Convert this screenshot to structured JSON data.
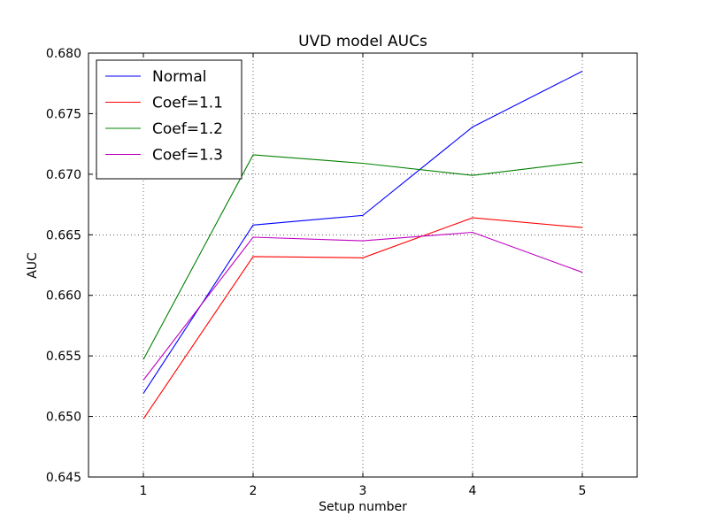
{
  "chart_data": {
    "type": "line",
    "title": "UVD model AUCs",
    "xlabel": "Setup number",
    "ylabel": "AUC",
    "xlim": [
      0.5,
      5.5
    ],
    "ylim": [
      0.645,
      0.68
    ],
    "x_ticks": [
      "1",
      "2",
      "3",
      "4",
      "5"
    ],
    "y_ticks": [
      "0.645",
      "0.650",
      "0.655",
      "0.660",
      "0.665",
      "0.670",
      "0.675",
      "0.680"
    ],
    "grid": true,
    "legend_position": "top-left",
    "x": [
      1,
      2,
      3,
      4,
      5
    ],
    "series": [
      {
        "name": "Normal",
        "color": "#0000ff",
        "values": [
          0.6519,
          0.6658,
          0.6666,
          0.6739,
          0.6785
        ]
      },
      {
        "name": "Coef=1.1",
        "color": "#ff0000",
        "values": [
          0.6498,
          0.6632,
          0.6631,
          0.6664,
          0.6656
        ]
      },
      {
        "name": "Coef=1.2",
        "color": "#008000",
        "values": [
          0.6547,
          0.6716,
          0.6709,
          0.6699,
          0.671
        ]
      },
      {
        "name": "Coef=1.3",
        "color": "#bf00bf",
        "values": [
          0.653,
          0.6648,
          0.6645,
          0.6652,
          0.6619
        ]
      }
    ]
  }
}
